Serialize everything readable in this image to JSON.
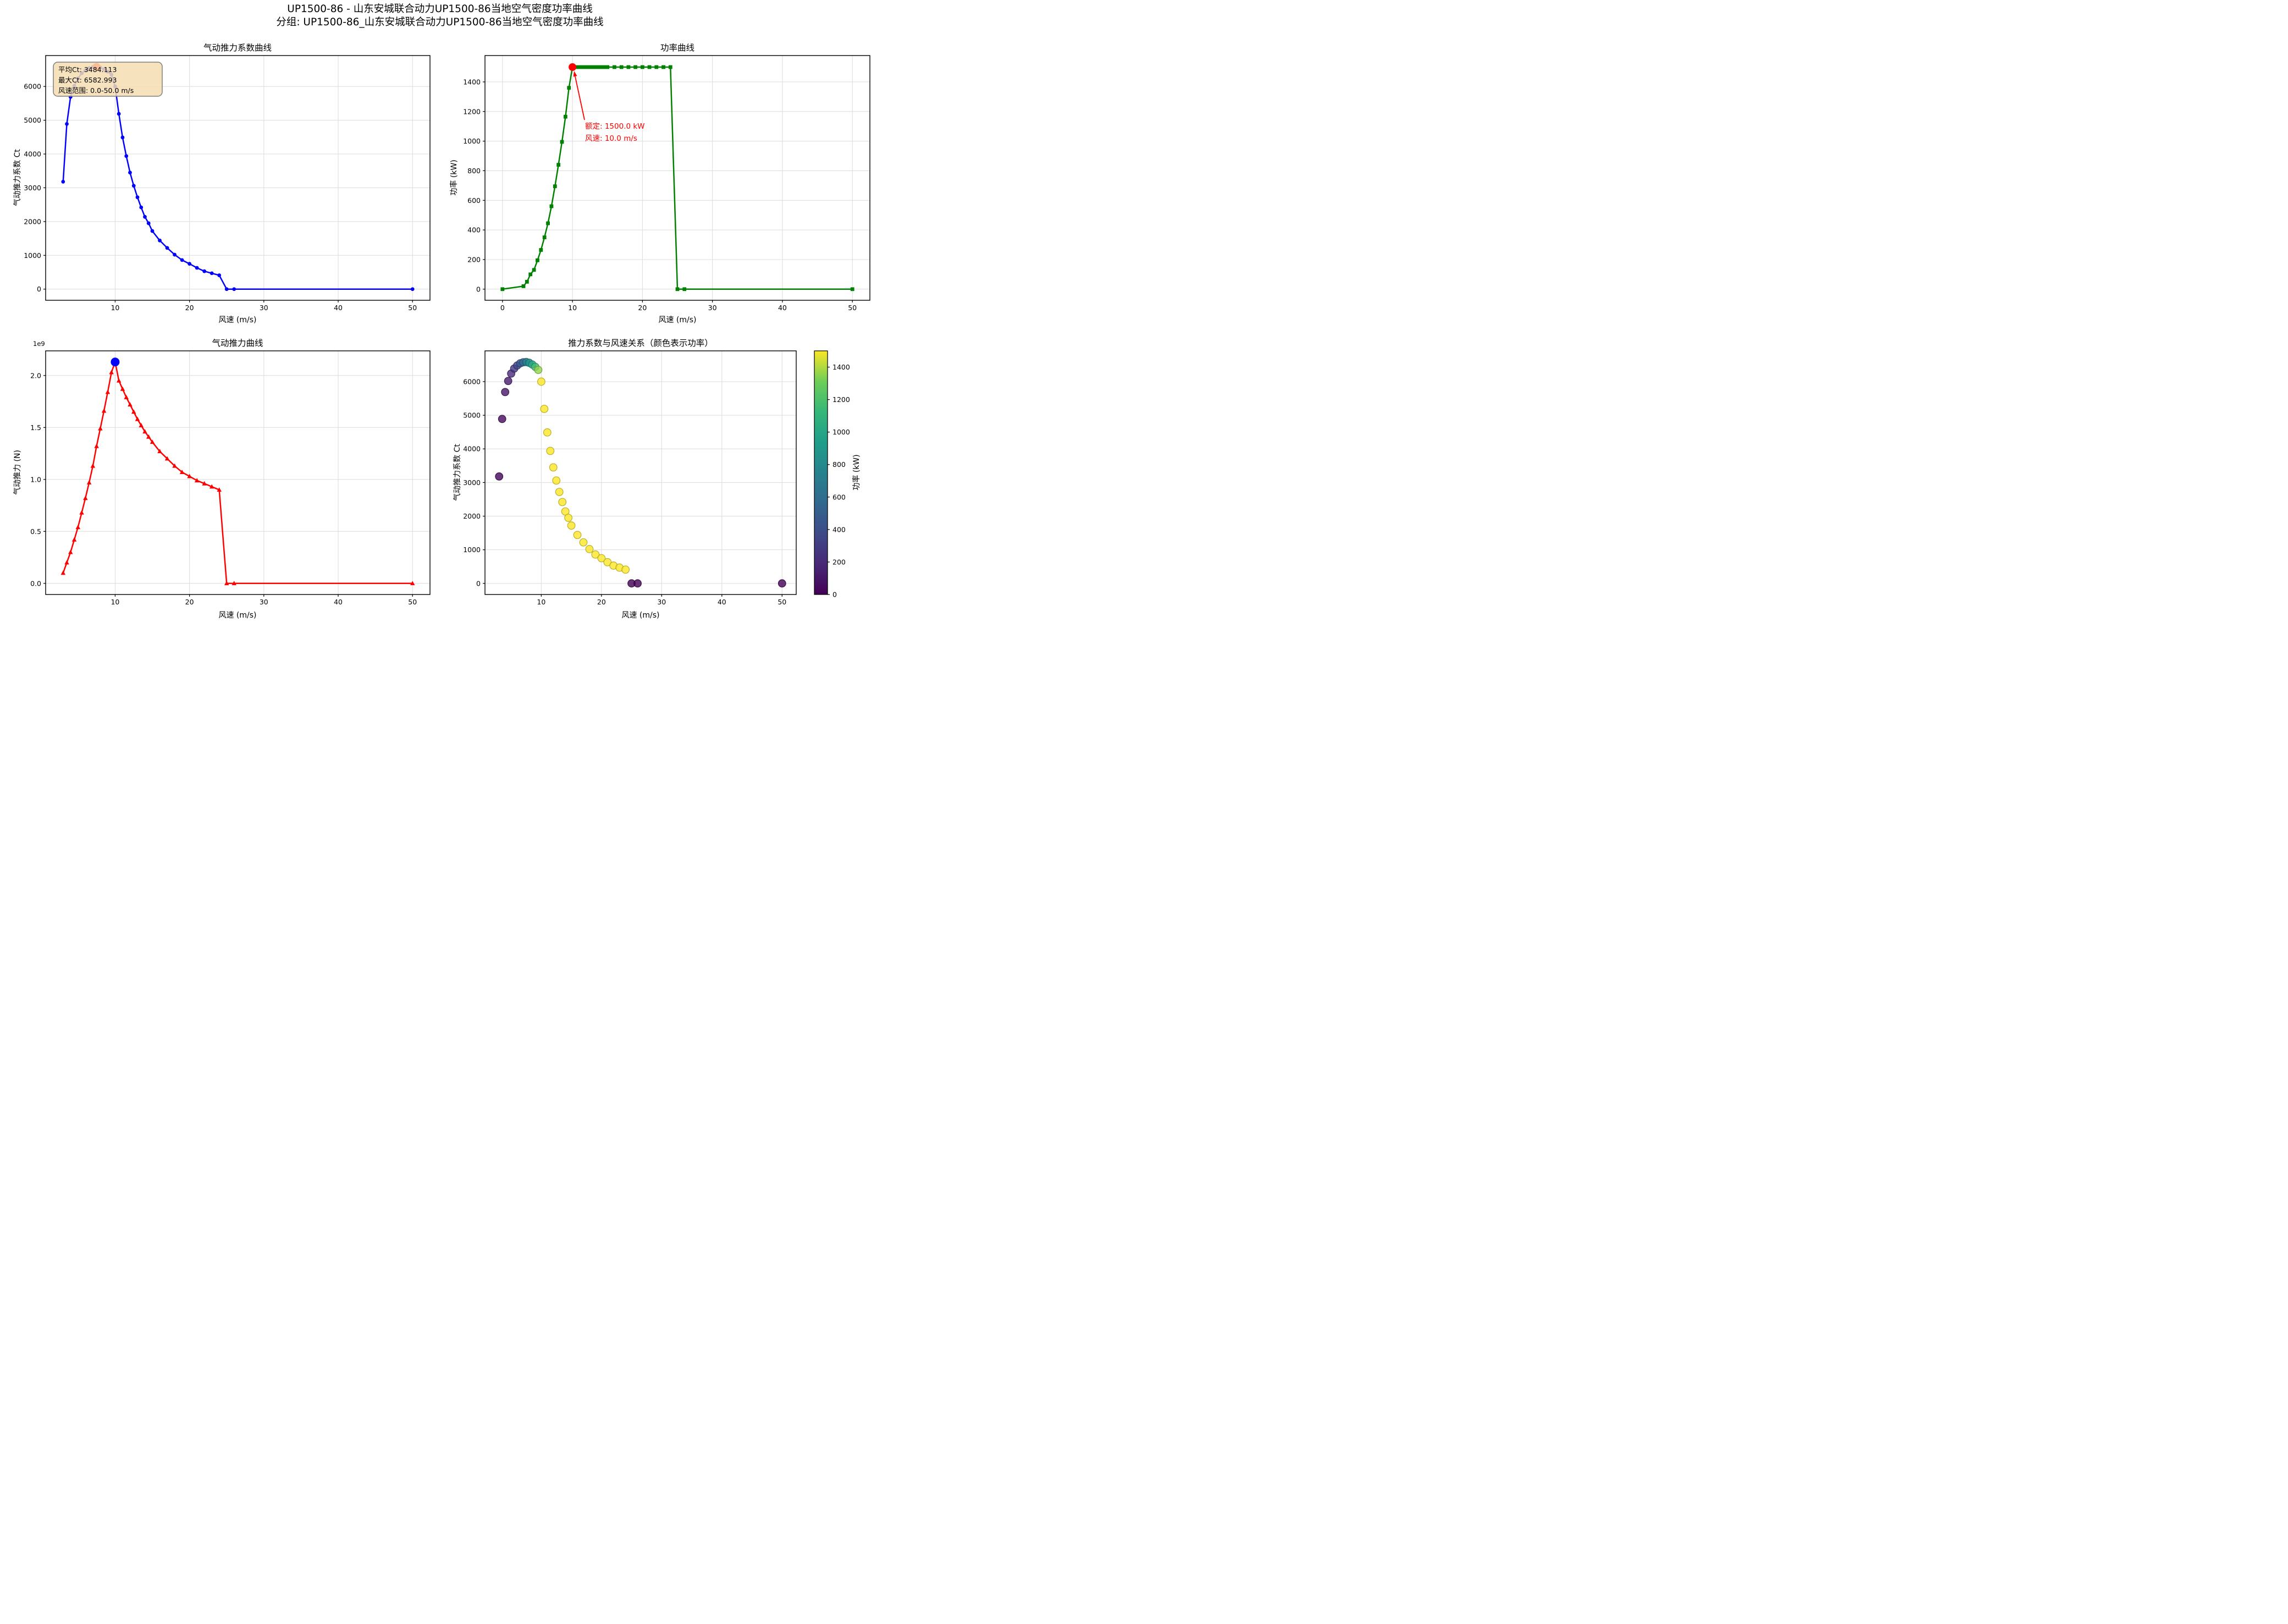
{
  "figure": {
    "suptitle_line1": "UP1500-86 - 山东安城联合动力UP1500-86当地空气密度功率曲线",
    "suptitle_line2": "分组: UP1500-86_山东安城联合动力UP1500-86当地空气密度功率曲线",
    "background": "#ffffff",
    "grid_color": "#dcdcdc"
  },
  "chart_data": [
    {
      "id": "ct",
      "type": "line",
      "title": "气动推力系数曲线",
      "xlabel": "风速 (m/s)",
      "ylabel": "气动推力系数 Ct",
      "line_color": "#0000ff",
      "marker": "circle",
      "grid": true,
      "x": [
        3,
        3.5,
        4,
        4.5,
        5,
        5.5,
        6,
        6.5,
        7,
        7.5,
        8,
        8.5,
        9,
        9.5,
        10,
        10.5,
        11,
        11.5,
        12,
        12.5,
        13,
        13.5,
        14,
        14.5,
        15,
        16,
        17,
        18,
        19,
        20,
        21,
        22,
        23,
        24,
        25,
        26,
        50
      ],
      "y": [
        3180,
        4890,
        5690,
        6020,
        6240,
        6390,
        6480,
        6545,
        6575,
        6583,
        6560,
        6510,
        6440,
        6350,
        6000,
        5190,
        4490,
        3940,
        3450,
        3060,
        2720,
        2420,
        2140,
        1950,
        1720,
        1440,
        1220,
        1020,
        860,
        750,
        630,
        530,
        470,
        410,
        0,
        0,
        0
      ],
      "xlim": [
        0.65,
        52.35
      ],
      "ylim": [
        -330,
        6915
      ],
      "xticks": [
        10,
        20,
        30,
        40,
        50
      ],
      "yticks": [
        0,
        1000,
        2000,
        3000,
        4000,
        5000,
        6000
      ],
      "highlight": {
        "x": 7.5,
        "y": 6583,
        "color": "#ff0000",
        "r": 7
      },
      "infobox": {
        "lines": [
          "平均Ct: 3484.113",
          "最大Ct: 6582.993",
          "风速范围: 0.0-50.0 m/s"
        ],
        "bg": "#f5deb3",
        "border": "#7f7f7f"
      }
    },
    {
      "id": "power",
      "type": "line",
      "title": "功率曲线",
      "xlabel": "风速 (m/s)",
      "ylabel": "功率 (kW)",
      "line_color": "#008000",
      "marker": "square",
      "grid": true,
      "x": [
        0,
        3,
        3.5,
        4,
        4.5,
        5,
        5.5,
        6,
        6.5,
        7,
        7.5,
        8,
        8.5,
        9,
        9.5,
        10,
        10.5,
        11,
        11.5,
        12,
        12.5,
        13,
        13.5,
        14,
        14.5,
        15,
        16,
        17,
        18,
        19,
        20,
        21,
        22,
        23,
        24,
        25,
        26,
        50
      ],
      "y": [
        0,
        20,
        50,
        100,
        130,
        195,
        265,
        350,
        445,
        560,
        695,
        840,
        995,
        1165,
        1360,
        1500,
        1500,
        1500,
        1500,
        1500,
        1500,
        1500,
        1500,
        1500,
        1500,
        1500,
        1500,
        1500,
        1500,
        1500,
        1500,
        1500,
        1500,
        1500,
        1500,
        0,
        0,
        0
      ],
      "xlim": [
        -2.5,
        52.5
      ],
      "ylim": [
        -75,
        1578
      ],
      "xticks": [
        0,
        10,
        20,
        30,
        40,
        50
      ],
      "yticks": [
        0,
        200,
        400,
        600,
        800,
        1000,
        1200,
        1400
      ],
      "highlight": {
        "x": 10,
        "y": 1500,
        "color": "#ff0000",
        "r": 7
      },
      "annotation": {
        "lines": [
          "额定: 1500.0 kW",
          "风速: 10.0 m/s"
        ],
        "color": "#ff0000",
        "rated_power_kw": 1500.0,
        "rated_wind_ms": 10.0
      }
    },
    {
      "id": "thrust",
      "type": "line",
      "title": "气动推力曲线",
      "xlabel": "风速 (m/s)",
      "ylabel": "气动推力 (N)",
      "offset_text": "1e9",
      "y_multiplier": 1000000000,
      "line_color": "#ff0000",
      "marker": "triangle",
      "grid": true,
      "x": [
        3,
        3.5,
        4,
        4.5,
        5,
        5.5,
        6,
        6.5,
        7,
        7.5,
        8,
        8.5,
        9,
        9.5,
        10,
        10.5,
        11,
        11.5,
        12,
        12.5,
        13,
        13.5,
        14,
        14.5,
        15,
        16,
        17,
        18,
        19,
        20,
        21,
        22,
        23,
        24,
        25,
        26,
        50
      ],
      "y": [
        0.1,
        0.2,
        0.3,
        0.42,
        0.54,
        0.68,
        0.82,
        0.97,
        1.13,
        1.32,
        1.49,
        1.66,
        1.84,
        2.03,
        2.13,
        1.95,
        1.87,
        1.79,
        1.72,
        1.65,
        1.58,
        1.52,
        1.46,
        1.41,
        1.36,
        1.27,
        1.2,
        1.13,
        1.07,
        1.03,
        0.99,
        0.96,
        0.93,
        0.9,
        0,
        0,
        0
      ],
      "xlim": [
        0.65,
        52.35
      ],
      "ylim": [
        -0.107,
        2.237
      ],
      "xticks": [
        10,
        20,
        30,
        40,
        50
      ],
      "yticks": [
        0,
        0.5,
        1.0,
        1.5,
        2.0
      ],
      "ytick_labels": [
        "0.0",
        "0.5",
        "1.0",
        "1.5",
        "2.0"
      ],
      "highlight": {
        "x": 10,
        "y": 2.13,
        "color": "#0000ff",
        "r": 8
      }
    },
    {
      "id": "scatter",
      "type": "scatter",
      "title": "推力系数与风速关系（颜色表示功率）",
      "xlabel": "风速 (m/s)",
      "ylabel": "气动推力系数 Ct",
      "grid": true,
      "x": [
        3,
        3.5,
        4,
        4.5,
        5,
        5.5,
        6,
        6.5,
        7,
        7.5,
        8,
        8.5,
        9,
        9.5,
        10,
        10.5,
        11,
        11.5,
        12,
        12.5,
        13,
        13.5,
        14,
        14.5,
        15,
        16,
        17,
        18,
        19,
        20,
        21,
        22,
        23,
        24,
        25,
        26,
        50
      ],
      "y": [
        3180,
        4890,
        5690,
        6020,
        6240,
        6390,
        6480,
        6545,
        6575,
        6583,
        6560,
        6510,
        6440,
        6350,
        6000,
        5190,
        4490,
        3940,
        3450,
        3060,
        2720,
        2420,
        2140,
        1950,
        1720,
        1440,
        1220,
        1020,
        860,
        750,
        630,
        530,
        470,
        410,
        0,
        0,
        0
      ],
      "c": [
        20,
        50,
        100,
        130,
        195,
        265,
        350,
        445,
        560,
        695,
        840,
        995,
        1165,
        1360,
        1500,
        1500,
        1500,
        1500,
        1500,
        1500,
        1500,
        1500,
        1500,
        1500,
        1500,
        1500,
        1500,
        1500,
        1500,
        1500,
        1500,
        1500,
        1500,
        1500,
        0,
        0,
        0
      ],
      "vmin": 0,
      "vmax": 1500,
      "xlim": [
        0.65,
        52.35
      ],
      "ylim": [
        -330,
        6915
      ],
      "xticks": [
        10,
        20,
        30,
        40,
        50
      ],
      "yticks": [
        0,
        1000,
        2000,
        3000,
        4000,
        5000,
        6000
      ],
      "colorbar": {
        "label": "功率 (kW)",
        "ticks": [
          0,
          200,
          400,
          600,
          800,
          1000,
          1200,
          1400
        ],
        "colormap": "viridis"
      }
    }
  ]
}
